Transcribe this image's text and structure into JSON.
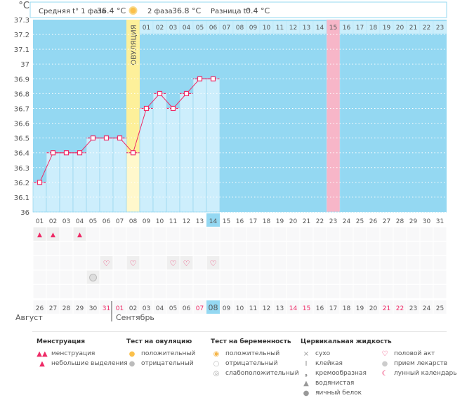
{
  "unit": "°C",
  "header": {
    "phase1_label": "Средняя t° 1 фаза",
    "phase1_value": "36.4 °C",
    "phase2_label": "2 фаза",
    "phase2_value": "36.8 °C",
    "diff_label": "Разница t°",
    "diff_value": "0.4 °C",
    "ovulation_label": "ОВУЛЯЦИЯ"
  },
  "colors": {
    "background": "#94d8f2",
    "bar": "#cdeefc",
    "line": "#ee2a66",
    "ovulation": "#fdf09a",
    "marked_day": "#f7b6c8",
    "today": "#94d8f2"
  },
  "chart_data": {
    "type": "bar",
    "ylim": [
      36,
      37.3
    ],
    "yticks": [
      "36",
      "36.1",
      "36.2",
      "36.3",
      "36.4",
      "36.5",
      "36.6",
      "36.7",
      "36.8",
      "36.9",
      "37",
      "37.1",
      "37.2",
      "37.3"
    ],
    "cycle_days": [
      "01",
      "02",
      "03",
      "04",
      "05",
      "06",
      "07",
      "08",
      "09",
      "10",
      "11",
      "12",
      "13",
      "14",
      "15",
      "16",
      "17",
      "18",
      "19",
      "20",
      "21",
      "22",
      "23",
      "24",
      "25",
      "26",
      "27",
      "28",
      "29",
      "30",
      "31"
    ],
    "temperatures": [
      36.2,
      36.4,
      36.4,
      36.4,
      36.5,
      36.5,
      36.5,
      36.4,
      36.7,
      36.8,
      36.7,
      36.8,
      36.9,
      36.9
    ],
    "ovulation_day": 8,
    "phase2_days": [
      "01",
      "02",
      "03",
      "04",
      "05",
      "06",
      "07",
      "08",
      "09",
      "10",
      "11",
      "12",
      "13",
      "14",
      "15",
      "16",
      "17",
      "18",
      "19",
      "20",
      "21",
      "22",
      "23"
    ],
    "highlight_phase2_day": "15",
    "current_day": 14
  },
  "dates": [
    "26",
    "27",
    "28",
    "29",
    "30",
    "31",
    "01",
    "02",
    "03",
    "04",
    "05",
    "06",
    "07",
    "08",
    "09",
    "10",
    "11",
    "12",
    "13",
    "14",
    "15",
    "16",
    "17",
    "18",
    "19",
    "20",
    "21",
    "22",
    "23",
    "24",
    "25"
  ],
  "red_dates": [
    5,
    6,
    12,
    19,
    20,
    26,
    27
  ],
  "months": [
    "Август",
    "Сентябрь"
  ],
  "symbols": {
    "menstruation_days": [
      1,
      2,
      4
    ],
    "intercourse_days": [
      6,
      8,
      11,
      12,
      14
    ],
    "medication_days": [
      5
    ]
  },
  "legend": [
    {
      "title": "Менструация",
      "items": [
        {
          "icon": "drops-icon",
          "label": "менструация"
        },
        {
          "icon": "drop-icon",
          "label": "небольшие выделения"
        }
      ]
    },
    {
      "title": "Тест на овуляцию",
      "items": [
        {
          "icon": "sun-positive-icon",
          "label": "положительный"
        },
        {
          "icon": "sun-negative-icon",
          "label": "отрицательный"
        }
      ]
    },
    {
      "title": "Тест на беременность",
      "items": [
        {
          "icon": "test-positive-icon",
          "label": "положительный"
        },
        {
          "icon": "test-negative-icon",
          "label": "отрицательный"
        },
        {
          "icon": "test-weak-icon",
          "label": "слабоположительный"
        }
      ]
    },
    {
      "title": "Цервикальная жидкость",
      "items": [
        {
          "icon": "cross-icon",
          "label": "сухо"
        },
        {
          "icon": "sticky-icon",
          "label": "клейкая"
        },
        {
          "icon": "creamy-icon",
          "label": "кремообразная"
        },
        {
          "icon": "watery-icon",
          "label": "водянистая"
        },
        {
          "icon": "egg-white-icon",
          "label": "яичный белок"
        }
      ]
    },
    {
      "title": "",
      "items": [
        {
          "icon": "heart-icon",
          "label": "половой акт"
        },
        {
          "icon": "pill-icon",
          "label": "прием лекарств"
        },
        {
          "icon": "moon-icon",
          "label": "лунный календарь"
        }
      ]
    }
  ]
}
